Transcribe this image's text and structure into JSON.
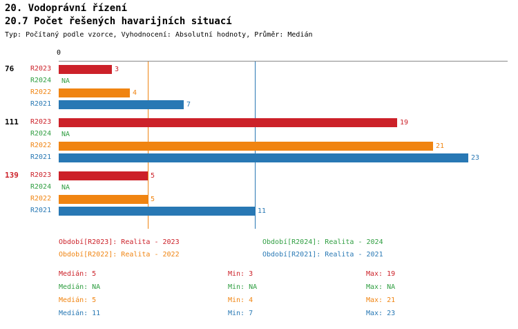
{
  "header": {
    "title": "20. Vodoprávní řízení",
    "subtitle": "20.7 Počet řešených havarijních situací",
    "meta": "Typ: Počítaný podle vzorce, Vyhodnocení: Absolutní hodnoty, Průměr: Medián"
  },
  "colors": {
    "R2023": "#cc2129",
    "R2024": "#2f9e41",
    "R2022": "#f08411",
    "R2021": "#2878b4",
    "axis": "#888888",
    "text": "#000000"
  },
  "chart_data": {
    "type": "bar",
    "orientation": "horizontal",
    "title": "20.7 Počet řešených havarijních situací",
    "axis": {
      "start_label": "0",
      "min": 0,
      "max": 25.2
    },
    "series_order": [
      "R2023",
      "R2024",
      "R2022",
      "R2021"
    ],
    "groups": [
      {
        "label": "76",
        "label_color": "#000000",
        "bars": [
          {
            "series": "R2023",
            "value": 3,
            "display": "3"
          },
          {
            "series": "R2024",
            "value": null,
            "display": "NA"
          },
          {
            "series": "R2022",
            "value": 4,
            "display": "4"
          },
          {
            "series": "R2021",
            "value": 7,
            "display": "7"
          }
        ]
      },
      {
        "label": "111",
        "label_color": "#000000",
        "bars": [
          {
            "series": "R2023",
            "value": 19,
            "display": "19"
          },
          {
            "series": "R2024",
            "value": null,
            "display": "NA"
          },
          {
            "series": "R2022",
            "value": 21,
            "display": "21"
          },
          {
            "series": "R2021",
            "value": 23,
            "display": "23"
          }
        ]
      },
      {
        "label": "139",
        "label_color": "#cc2129",
        "bars": [
          {
            "series": "R2023",
            "value": 5,
            "display": "5"
          },
          {
            "series": "R2024",
            "value": null,
            "display": "NA"
          },
          {
            "series": "R2022",
            "value": 5,
            "display": "5"
          },
          {
            "series": "R2021",
            "value": 11,
            "display": "11"
          }
        ]
      }
    ],
    "median_lines": [
      {
        "series": "R2023",
        "value": 5
      },
      {
        "series": "R2022",
        "value": 5
      },
      {
        "series": "R2021",
        "value": 11
      }
    ],
    "legend": [
      {
        "series": "R2023",
        "label": "Období[R2023]: Realita - 2023"
      },
      {
        "series": "R2024",
        "label": "Období[R2024]: Realita - 2024"
      },
      {
        "series": "R2022",
        "label": "Období[R2022]: Realita - 2022"
      },
      {
        "series": "R2021",
        "label": "Období[R2021]: Realita - 2021"
      }
    ],
    "stats": [
      {
        "series": "R2023",
        "median": "Medián: 5",
        "min": "Min: 3",
        "max": "Max: 19"
      },
      {
        "series": "R2024",
        "median": "Medián: NA",
        "min": "Min: NA",
        "max": "Max: NA"
      },
      {
        "series": "R2022",
        "median": "Medián: 5",
        "min": "Min: 4",
        "max": "Max: 21"
      },
      {
        "series": "R2021",
        "median": "Medián: 11",
        "min": "Min: 7",
        "max": "Max: 23"
      }
    ]
  }
}
